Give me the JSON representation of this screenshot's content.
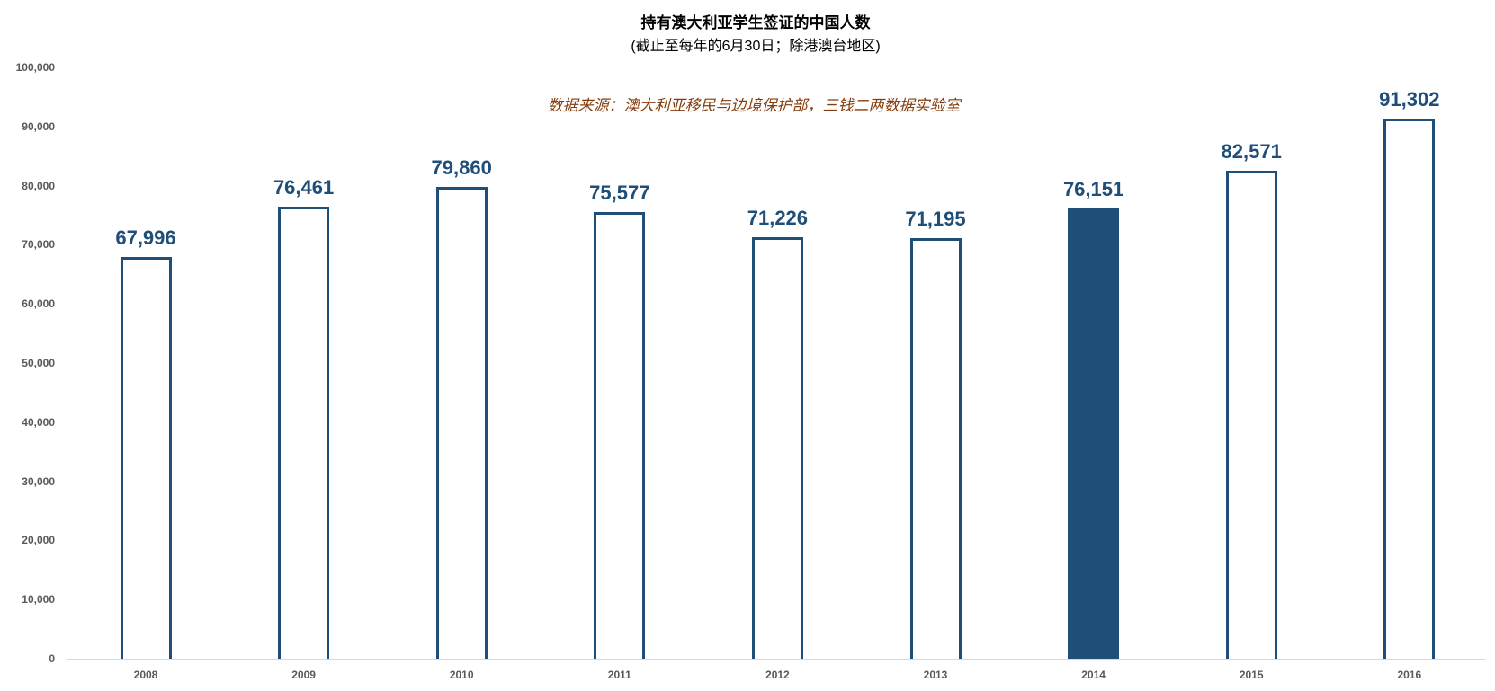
{
  "chart_data": {
    "type": "bar",
    "title": "持有澳大利亚学生签证的中国人数",
    "subtitle": "(截止至每年的6月30日；除港澳台地区)",
    "annotation": "数据来源：澳大利亚移民与边境保护部，三钱二两数据实验室",
    "categories": [
      "2008",
      "2009",
      "2010",
      "2011",
      "2012",
      "2013",
      "2014",
      "2015",
      "2016"
    ],
    "values": [
      67996,
      76461,
      79860,
      75577,
      71226,
      71195,
      76151,
      82571,
      91302
    ],
    "data_labels": [
      "67,996",
      "76,461",
      "79,860",
      "75,577",
      "71,226",
      "71,195",
      "76,151",
      "82,571",
      "91,302"
    ],
    "highlighted_category": "2014",
    "xlabel": "",
    "ylabel": "",
    "ylim": [
      0,
      100000
    ],
    "yticks": [
      "0",
      "10,000",
      "20,000",
      "30,000",
      "40,000",
      "50,000",
      "60,000",
      "70,000",
      "80,000",
      "90,000",
      "100,000"
    ],
    "grid": false,
    "legend": "none",
    "colors": {
      "bar_outline": "#1F4E79",
      "bar_highlight_fill": "#1F4E79",
      "bar_fill": "#FFFFFF",
      "annotation": "#843C0C",
      "axis_text": "#595959"
    }
  }
}
